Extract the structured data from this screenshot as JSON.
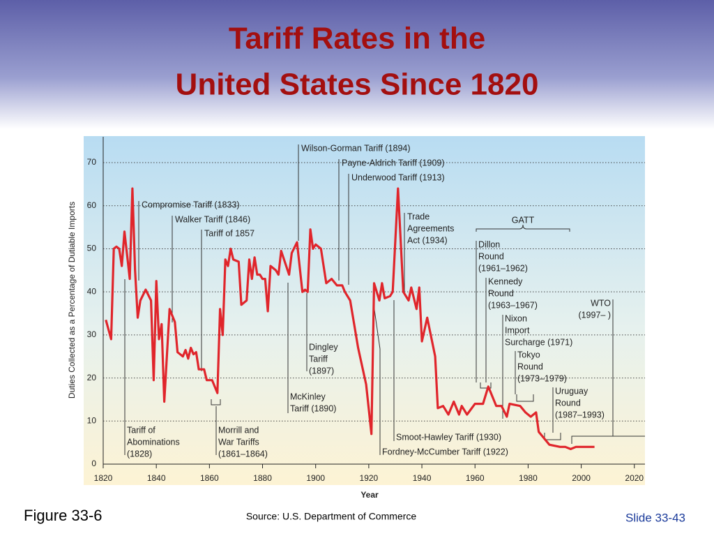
{
  "slide": {
    "figure": "Figure 33-6",
    "source": "Source: U.S. Department of Commerce",
    "slide_number": "Slide 33-43"
  },
  "chart_data": {
    "type": "line",
    "title": [
      "Tariff Rates in the",
      "United States Since 1820"
    ],
    "x_label": "Year",
    "y_label": "Duties Collected as a Percentage of Dutiable Imports",
    "color": "#e0252b",
    "x": [
      1821,
      1823,
      1824,
      1825,
      1826,
      1827,
      1828,
      1830,
      1831,
      1832,
      1833,
      1834,
      1836,
      1838,
      1839,
      1840,
      1841,
      1842,
      1843,
      1845,
      1847,
      1848,
      1850,
      1851,
      1852,
      1853,
      1854,
      1855,
      1856,
      1858,
      1859,
      1861,
      1863,
      1864,
      1865,
      1866,
      1867,
      1868,
      1869,
      1871,
      1872,
      1874,
      1875,
      1876,
      1877,
      1878,
      1879,
      1880,
      1881,
      1882,
      1883,
      1885,
      1886,
      1887,
      1890,
      1891,
      1893,
      1895,
      1896,
      1897,
      1898,
      1899,
      1900,
      1902,
      1904,
      1906,
      1908,
      1910,
      1911,
      1913,
      1916,
      1919,
      1921,
      1922,
      1924,
      1925,
      1926,
      1928,
      1929,
      1931,
      1933,
      1935,
      1936,
      1938,
      1939,
      1940,
      1942,
      1945,
      1946,
      1948,
      1950,
      1952,
      1954,
      1955,
      1957,
      1960,
      1963,
      1965,
      1968,
      1970,
      1972,
      1973,
      1977,
      1979,
      1981,
      1983,
      1984,
      1986,
      1988,
      1992,
      1994,
      1996,
      1998,
      2005
    ],
    "values": [
      33.5,
      29,
      50,
      50.5,
      50,
      46,
      54,
      43,
      64,
      45,
      34,
      38,
      40.5,
      38,
      19.5,
      42.5,
      29,
      32.5,
      14.5,
      36,
      33,
      26,
      25,
      26.5,
      24.5,
      27,
      25.5,
      26,
      22,
      22,
      19.5,
      19.5,
      16.5,
      36,
      30,
      47.5,
      46,
      50,
      47.5,
      47,
      37,
      38,
      47.5,
      43,
      48,
      44,
      44,
      43,
      43,
      35.5,
      46,
      45,
      44,
      49.5,
      44,
      49,
      51.5,
      40,
      40.5,
      40,
      54.5,
      50,
      51,
      50,
      42,
      43,
      41.5,
      41.5,
      40,
      38,
      27,
      18.5,
      7,
      42,
      38,
      42,
      38.5,
      39,
      40,
      64,
      40,
      38,
      41,
      36,
      41,
      28.5,
      34,
      25,
      13,
      13.5,
      11.5,
      14.5,
      11.5,
      13.5,
      11.5,
      14,
      14,
      18,
      13.5,
      13.5,
      11,
      14,
      13.5,
      12,
      11,
      12,
      7.5,
      6,
      4.5,
      4,
      4,
      3.5,
      4,
      4
    ],
    "xlim": [
      1820,
      2024
    ],
    "ylim": [
      0,
      76
    ],
    "xticks": [
      1820,
      1840,
      1860,
      1880,
      1900,
      1920,
      1940,
      1960,
      1980,
      2000,
      2020
    ],
    "yticks": [
      0,
      10,
      20,
      30,
      40,
      50,
      60,
      70
    ],
    "grid": true,
    "annotations": [
      [
        "Wilson-Gorman Tariff (1894)"
      ],
      [
        "Payne-Aldrich Tariff (1909)"
      ],
      [
        "Underwood Tariff (1913)"
      ],
      [
        "Compromise Tariff (1833)"
      ],
      [
        "Walker Tariff (1846)"
      ],
      [
        "Tariff of 1857"
      ],
      [
        "Trade",
        "Agreements",
        "Act (1934)"
      ],
      [
        "GATT"
      ],
      [
        "Dillon",
        "Round",
        "(1961–1962)"
      ],
      [
        "Kennedy",
        "Round",
        "(1963–1967)"
      ],
      [
        "Nixon",
        "Import",
        "Surcharge (1971)"
      ],
      [
        "Tokyo",
        "Round",
        "(1973–1979)"
      ],
      [
        "Uruguay",
        "Round",
        "(1987–1993)"
      ],
      [
        "WTO",
        "(1997– )"
      ],
      [
        "Dingley",
        "Tariff",
        "(1897)"
      ],
      [
        "McKinley",
        "Tariff (1890)"
      ],
      [
        "Tariff of",
        "Abominations",
        "(1828)"
      ],
      [
        "Morrill and",
        "War Tariffs",
        "(1861–1864)"
      ],
      [
        "Smoot-Hawley Tariff (1930)"
      ],
      [
        "Fordney-McCumber Tariff (1922)"
      ]
    ]
  }
}
